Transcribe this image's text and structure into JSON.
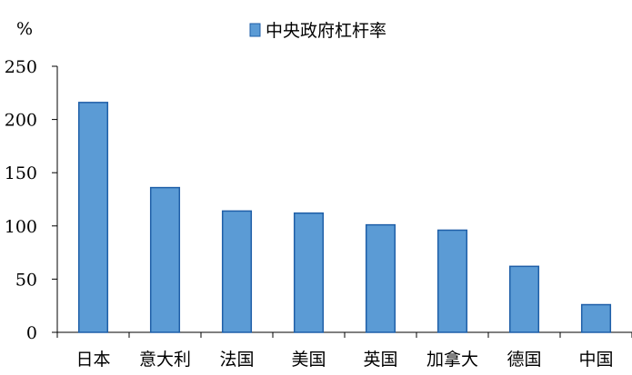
{
  "chart_data": {
    "type": "bar",
    "y_unit": "%",
    "categories": [
      "日本",
      "意大利",
      "法国",
      "美国",
      "英国",
      "加拿大",
      "德国",
      "中国"
    ],
    "series": [
      {
        "name": "中央政府杠杆率",
        "values": [
          216,
          136,
          114,
          112,
          101,
          96,
          62,
          26
        ],
        "color": "#5b9bd5"
      }
    ],
    "ylim": [
      0,
      250
    ],
    "yticks": [
      0,
      50,
      100,
      150,
      200,
      250
    ],
    "grid": false,
    "legend_position": "top"
  }
}
